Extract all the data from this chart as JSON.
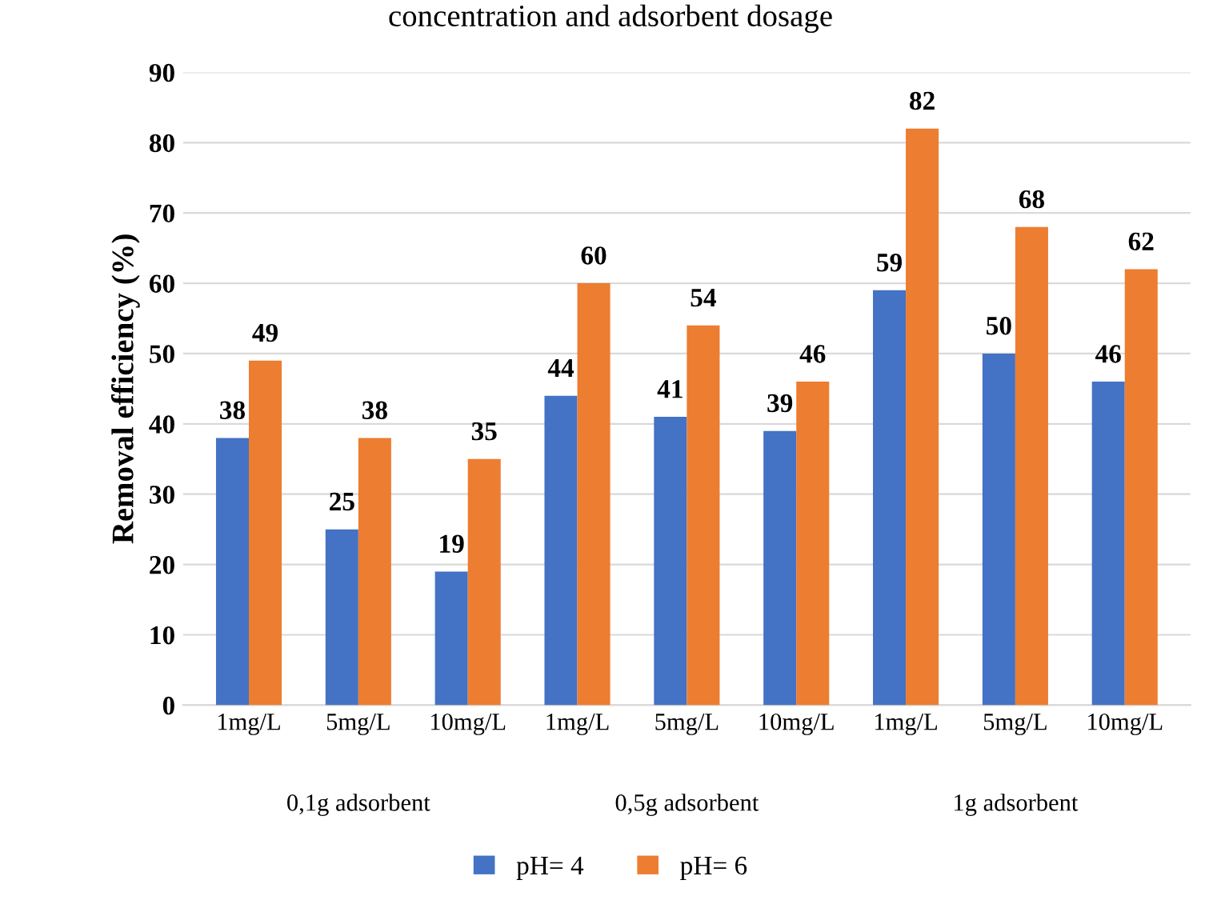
{
  "chart_data": {
    "type": "bar",
    "title": "concentration and adsorbent dosage",
    "ylabel": "Removal efficiency (%)",
    "categories": [
      "1mg/L",
      "5mg/L",
      "10mg/L",
      "1mg/L",
      "5mg/L",
      "10mg/L",
      "1mg/L",
      "5mg/L",
      "10mg/L"
    ],
    "series": [
      {
        "name": "pH= 4",
        "color": "#4472c4",
        "values": [
          38,
          25,
          19,
          44,
          41,
          39,
          59,
          50,
          46
        ]
      },
      {
        "name": "pH= 6",
        "color": "#ed7d31",
        "values": [
          49,
          38,
          35,
          60,
          54,
          46,
          82,
          68,
          62
        ]
      }
    ],
    "annotations": [
      "0,1g adsorbent",
      "0,5g adsorbent",
      "1g adsorbent"
    ],
    "ylim": [
      0,
      90
    ],
    "yticks": [
      0,
      10,
      20,
      30,
      40,
      50,
      60,
      70,
      80,
      90
    ],
    "grid": "y",
    "legend": "bottom",
    "data_labels": true
  }
}
